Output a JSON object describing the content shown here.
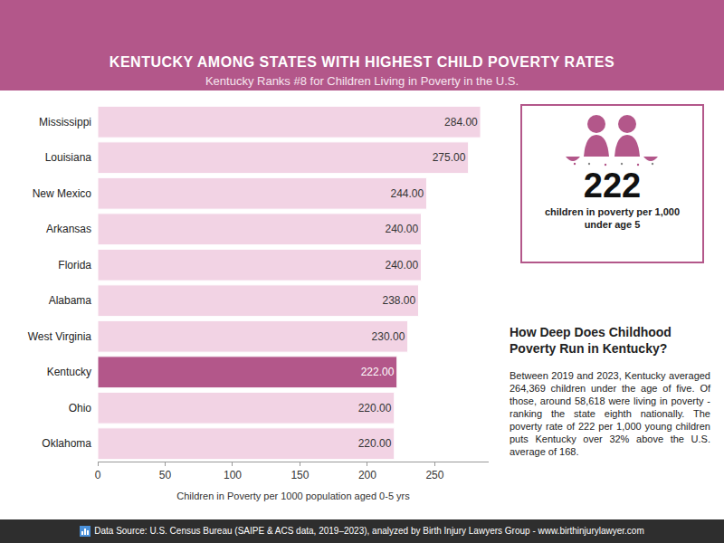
{
  "chart_data": {
    "type": "bar",
    "orientation": "horizontal",
    "title": "KENTUCKY AMONG STATES WITH HIGHEST CHILD POVERTY RATES",
    "subtitle": "Kentucky Ranks #8 for Children Living in Poverty in the U.S.",
    "categories": [
      "Mississippi",
      "Louisiana",
      "New Mexico",
      "Arkansas",
      "Florida",
      "Alabama",
      "West Virginia",
      "Kentucky",
      "Ohio",
      "Oklahoma"
    ],
    "values": [
      284,
      275,
      244,
      240,
      240,
      238,
      230,
      222,
      220,
      220
    ],
    "value_labels": [
      "284.00",
      "275.00",
      "244.00",
      "240.00",
      "240.00",
      "238.00",
      "230.00",
      "222.00",
      "220.00",
      "220.00"
    ],
    "data_labels": true,
    "colors": [
      "#f2d3e4",
      "#f2d3e4",
      "#f2d3e4",
      "#f2d3e4",
      "#f2d3e4",
      "#f2d3e4",
      "#f2d3e4",
      "#b3578a",
      "#f2d3e4",
      "#f2d3e4"
    ],
    "x_label": "Children in Poverty per 1000 population aged 0-5 yrs",
    "xlim": [
      0,
      290
    ],
    "xticks": [
      0,
      50,
      100,
      150,
      200,
      250
    ],
    "grid": false
  },
  "callout": {
    "value": 222,
    "label": "children in poverty per 1,000 under age 5"
  },
  "sidebar": {
    "heading": "How Deep Does Childhood Poverty Run in Kentucky?",
    "text": "Between 2019 and 2023, Kentucky averaged 264,369 children under the age of five. Of those, around 58,618 were living in poverty - ranking the state eighth nationally. The poverty rate of 222 per 1,000 young children puts Kentucky over 32% above the U.S. average of 168."
  },
  "footer": {
    "source": "Data Source: U.S. Census Bureau (SAIPE & ACS data, 2019–2023), analyzed by Birth Injury Lawyers Group - www.birthinjurylawyer.com"
  }
}
